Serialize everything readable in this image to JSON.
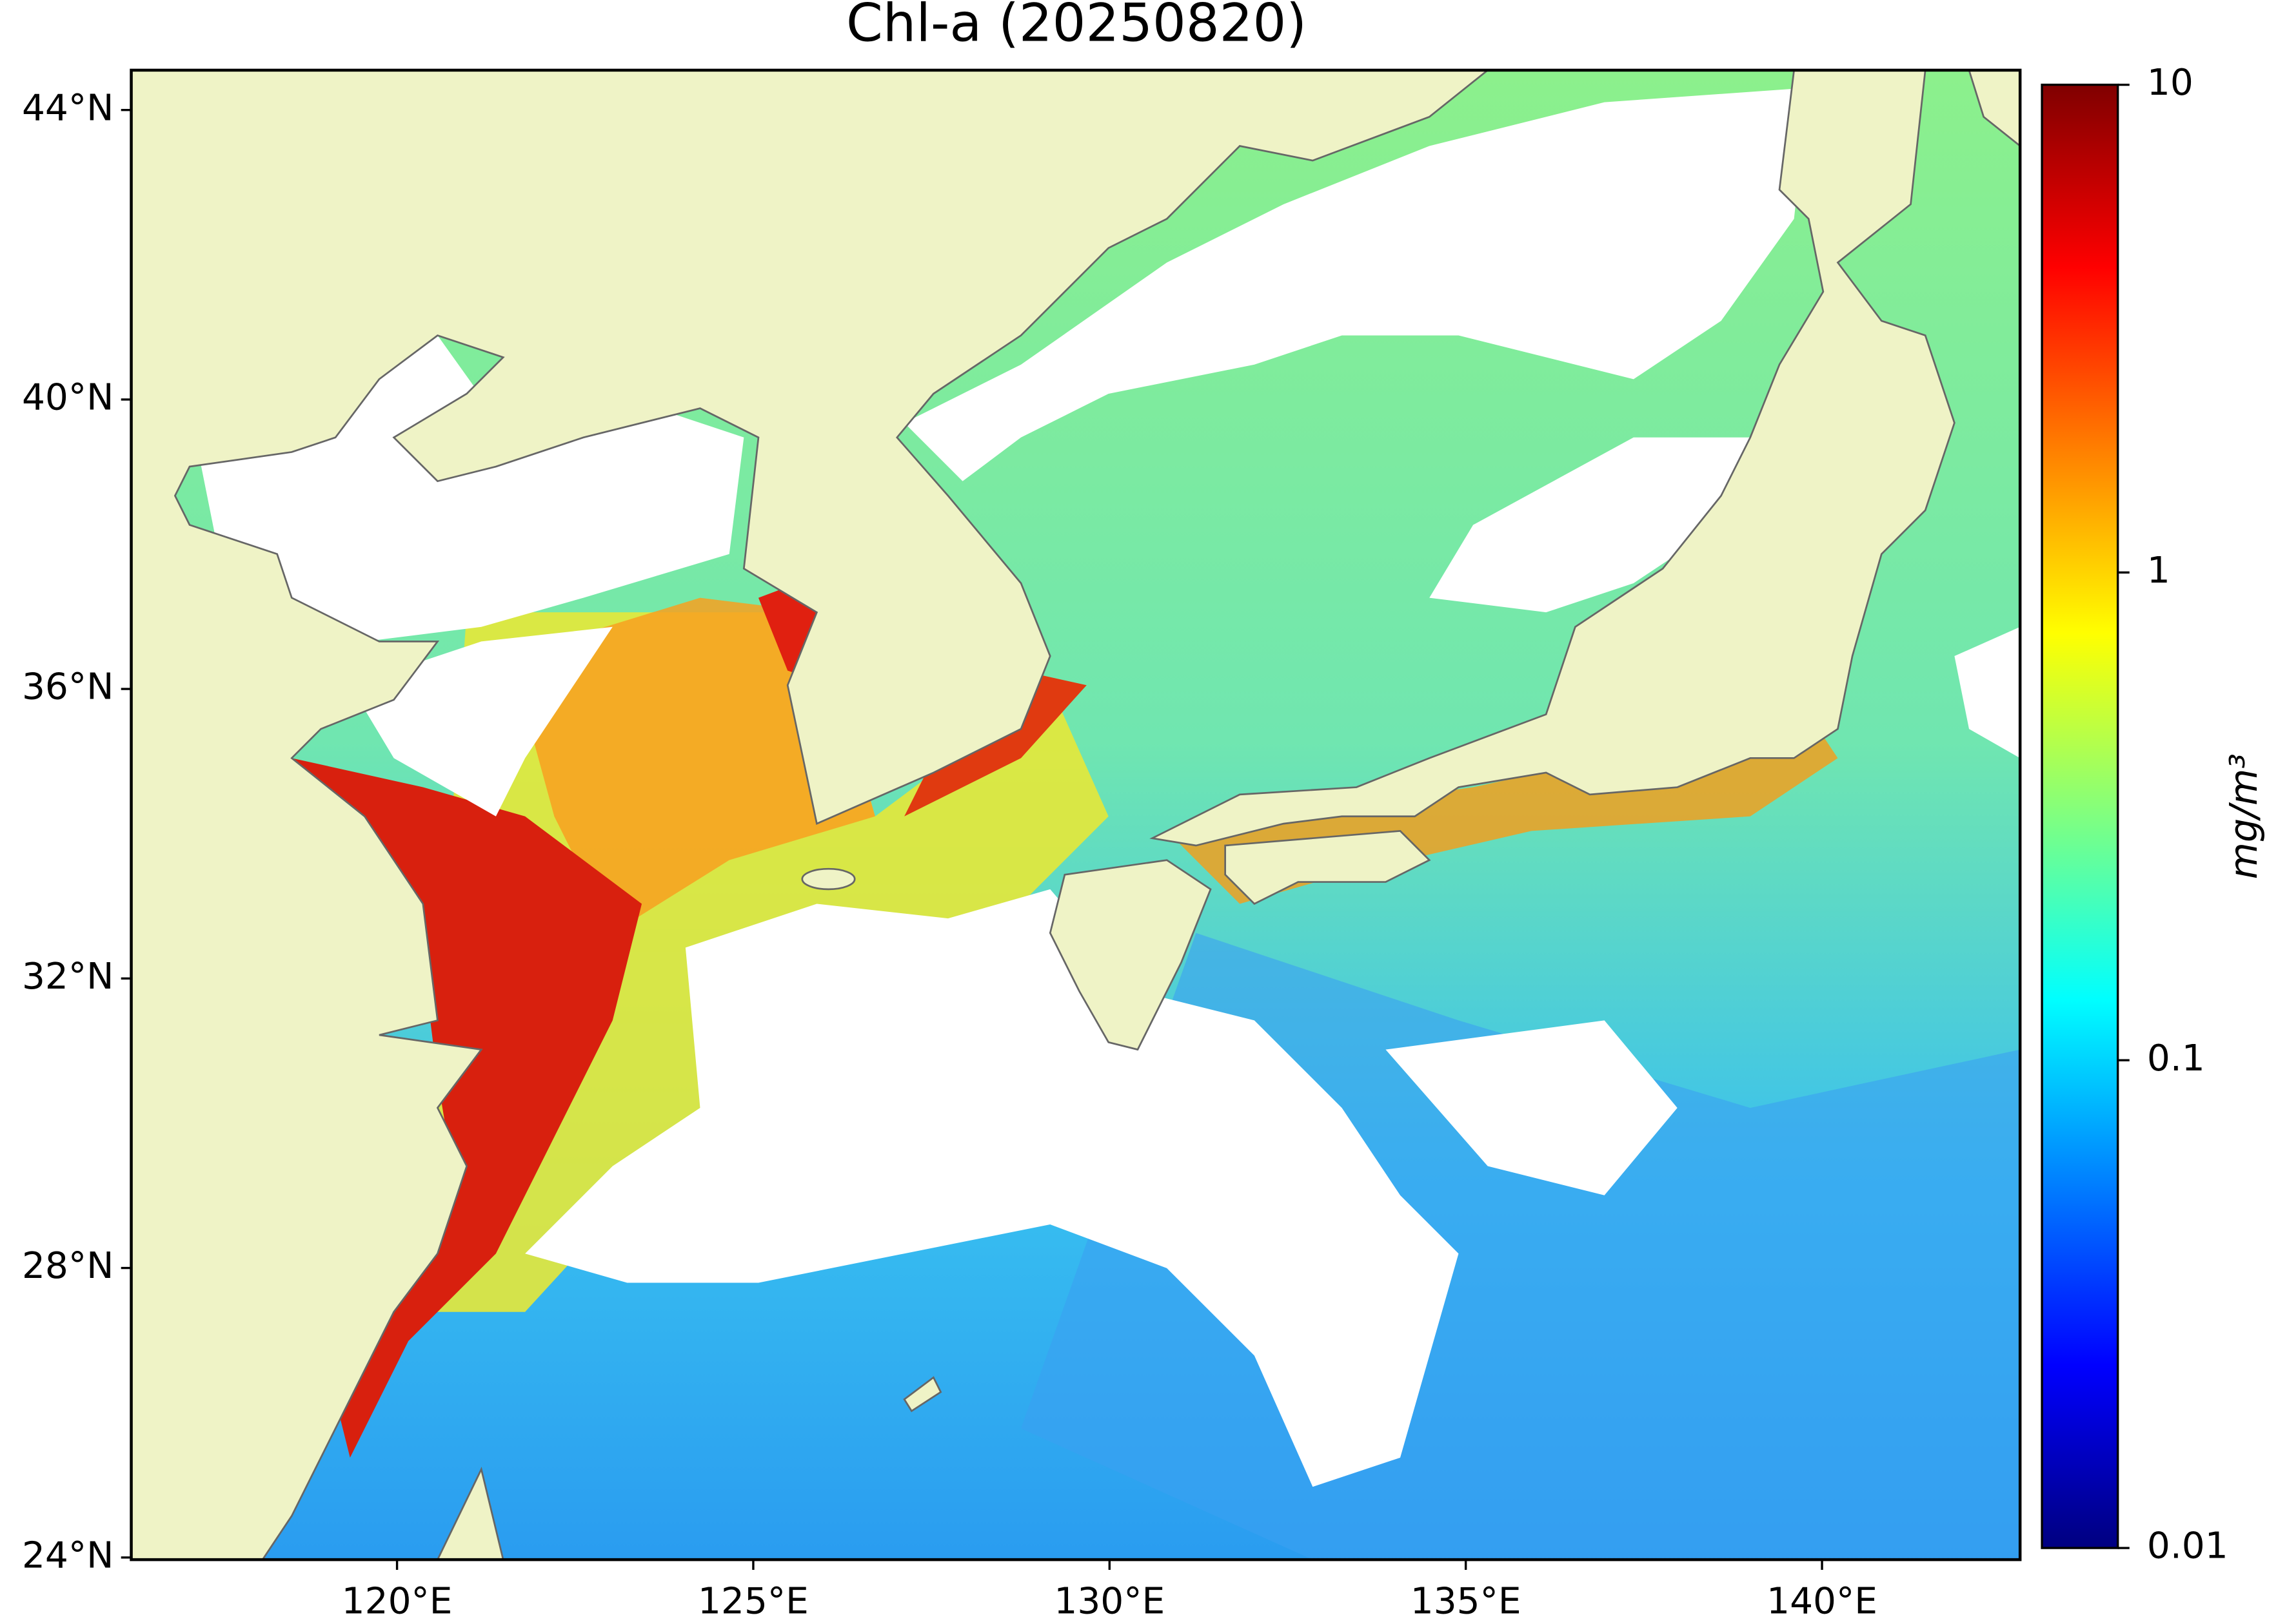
{
  "chart_data": {
    "type": "map",
    "title": "Chl-a (20250820)",
    "xlim": [
      116.27,
      142.78
    ],
    "ylim": [
      23.97,
      44.55
    ],
    "xticks": [
      {
        "value": 120,
        "label": "120°E"
      },
      {
        "value": 125,
        "label": "125°E"
      },
      {
        "value": 130,
        "label": "130°E"
      },
      {
        "value": 135,
        "label": "135°E"
      },
      {
        "value": 140,
        "label": "140°E"
      }
    ],
    "yticks": [
      {
        "value": 24,
        "label": "24°N"
      },
      {
        "value": 28,
        "label": "28°N"
      },
      {
        "value": 32,
        "label": "32°N"
      },
      {
        "value": 36,
        "label": "36°N"
      },
      {
        "value": 40,
        "label": "40°N"
      },
      {
        "value": 44,
        "label": "44°N"
      }
    ],
    "colorbar": {
      "label": "mg/m³",
      "scale": "log",
      "lim": [
        0.01,
        10
      ],
      "ticks": [
        0.01,
        0.1,
        1,
        10
      ],
      "colormap": "jet"
    }
  }
}
